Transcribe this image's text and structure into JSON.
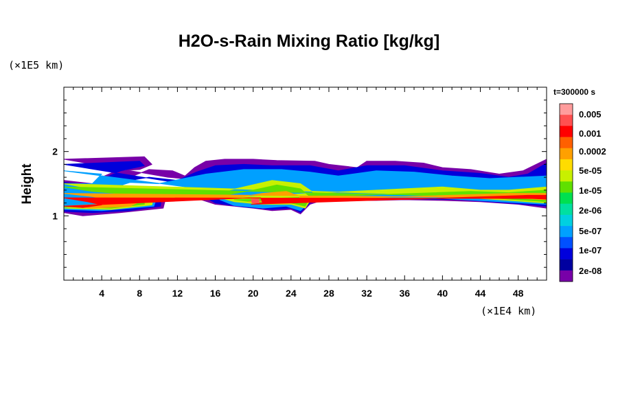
{
  "chart_data": {
    "type": "heatmap",
    "title": "H2O-s-Rain Mixing Ratio [kg/kg]",
    "xlabel": "",
    "ylabel": "Height",
    "x_unit": "(×1E4 km)",
    "y_unit": "(×1E5 km)",
    "xlim": [
      0,
      51
    ],
    "ylim": [
      0,
      3
    ],
    "x_ticks": [
      4,
      8,
      12,
      16,
      20,
      24,
      28,
      32,
      36,
      40,
      44,
      48
    ],
    "y_ticks": [
      1,
      2
    ],
    "timestamp": "t=300000 s",
    "colorbar": {
      "labels": [
        "0.005",
        "0.001",
        "0.0002",
        "5e-05",
        "1e-05",
        "2e-06",
        "5e-07",
        "1e-07",
        "2e-08"
      ],
      "colors": [
        "#ff9c9c",
        "#ff5050",
        "#ff0000",
        "#ff6000",
        "#ffa000",
        "#ffdc00",
        "#c8f000",
        "#60e000",
        "#00e050",
        "#00e0a0",
        "#00d0e0",
        "#00a0ff",
        "#0050ff",
        "#0000dc",
        "#0000a0",
        "#7800a8"
      ]
    },
    "contours": [
      {
        "level": "2e-08",
        "color": "#7800a8",
        "points": [
          [
            0,
            1.88
          ],
          [
            8.5,
            1.92
          ],
          [
            9.3,
            1.8
          ],
          [
            8,
            1.72
          ],
          [
            5.5,
            1.7
          ],
          [
            4,
            1.6
          ],
          [
            3,
            1.5
          ],
          [
            0,
            1.55
          ],
          [
            0,
            1.05
          ],
          [
            2,
            1.0
          ],
          [
            6,
            1.05
          ],
          [
            10.5,
            1.12
          ],
          [
            10.8,
            1.3
          ],
          [
            8.5,
            1.38
          ],
          [
            6,
            1.45
          ],
          [
            7,
            1.6
          ],
          [
            9,
            1.72
          ],
          [
            11.5,
            1.7
          ],
          [
            12.8,
            1.62
          ],
          [
            13.8,
            1.75
          ],
          [
            15,
            1.85
          ],
          [
            17,
            1.88
          ],
          [
            20,
            1.88
          ],
          [
            22.5,
            1.86
          ],
          [
            26.5,
            1.85
          ],
          [
            28,
            1.8
          ],
          [
            31,
            1.75
          ],
          [
            32,
            1.85
          ],
          [
            35,
            1.85
          ],
          [
            38,
            1.82
          ],
          [
            40,
            1.75
          ],
          [
            43,
            1.72
          ],
          [
            46,
            1.65
          ],
          [
            48.5,
            1.7
          ],
          [
            51,
            1.88
          ],
          [
            51,
            1.12
          ],
          [
            48,
            1.18
          ],
          [
            44,
            1.22
          ],
          [
            40,
            1.24
          ],
          [
            36,
            1.25
          ],
          [
            33,
            1.24
          ],
          [
            30,
            1.24
          ],
          [
            27.5,
            1.25
          ],
          [
            26,
            1.18
          ],
          [
            25,
            1.03
          ],
          [
            24,
            1.1
          ],
          [
            22,
            1.08
          ],
          [
            20,
            1.12
          ],
          [
            18,
            1.15
          ],
          [
            16,
            1.18
          ],
          [
            14.5,
            1.25
          ],
          [
            14,
            1.5
          ],
          [
            12.5,
            1.58
          ],
          [
            11,
            1.6
          ]
        ]
      },
      {
        "level": "1e-07",
        "color": "#0000dc",
        "points": [
          [
            0,
            1.8
          ],
          [
            8,
            1.85
          ],
          [
            8.5,
            1.78
          ],
          [
            6,
            1.7
          ],
          [
            4.5,
            1.6
          ],
          [
            3,
            1.48
          ],
          [
            0,
            1.52
          ],
          [
            0,
            1.07
          ],
          [
            3,
            1.05
          ],
          [
            7,
            1.08
          ],
          [
            10.2,
            1.15
          ],
          [
            10.3,
            1.28
          ],
          [
            8,
            1.35
          ],
          [
            5.8,
            1.45
          ],
          [
            7,
            1.55
          ],
          [
            9,
            1.6
          ],
          [
            12,
            1.55
          ],
          [
            14,
            1.68
          ],
          [
            16,
            1.78
          ],
          [
            19,
            1.8
          ],
          [
            22,
            1.78
          ],
          [
            26,
            1.78
          ],
          [
            29,
            1.7
          ],
          [
            32,
            1.78
          ],
          [
            36,
            1.78
          ],
          [
            40,
            1.7
          ],
          [
            44,
            1.66
          ],
          [
            47,
            1.6
          ],
          [
            49,
            1.65
          ],
          [
            51,
            1.82
          ],
          [
            51,
            1.15
          ],
          [
            47,
            1.2
          ],
          [
            42,
            1.25
          ],
          [
            36,
            1.27
          ],
          [
            32,
            1.26
          ],
          [
            28,
            1.27
          ],
          [
            26,
            1.2
          ],
          [
            25,
            1.05
          ],
          [
            24,
            1.12
          ],
          [
            22,
            1.1
          ],
          [
            19,
            1.14
          ],
          [
            16,
            1.2
          ],
          [
            15,
            1.28
          ],
          [
            14.6,
            1.45
          ]
        ]
      },
      {
        "level": "5e-07",
        "color": "#00a0ff",
        "points": [
          [
            0,
            1.7
          ],
          [
            4,
            1.65
          ],
          [
            3,
            1.5
          ],
          [
            0,
            1.5
          ],
          [
            0,
            1.1
          ],
          [
            4,
            1.08
          ],
          [
            9.5,
            1.15
          ],
          [
            9.8,
            1.28
          ],
          [
            7.5,
            1.33
          ],
          [
            5.5,
            1.45
          ],
          [
            7,
            1.52
          ],
          [
            10,
            1.5
          ],
          [
            15,
            1.65
          ],
          [
            19,
            1.72
          ],
          [
            23,
            1.72
          ],
          [
            26,
            1.68
          ],
          [
            29,
            1.62
          ],
          [
            33,
            1.7
          ],
          [
            37,
            1.68
          ],
          [
            41,
            1.62
          ],
          [
            45,
            1.58
          ],
          [
            51,
            1.62
          ],
          [
            51,
            1.18
          ],
          [
            46,
            1.22
          ],
          [
            40,
            1.27
          ],
          [
            33,
            1.28
          ],
          [
            28,
            1.3
          ],
          [
            26,
            1.22
          ],
          [
            25,
            1.08
          ],
          [
            23.5,
            1.15
          ],
          [
            21,
            1.12
          ],
          [
            18,
            1.16
          ],
          [
            16.5,
            1.25
          ],
          [
            15.5,
            1.4
          ]
        ]
      },
      {
        "level": "5e-05",
        "color": "#c8f000",
        "points": [
          [
            0,
            1.5
          ],
          [
            3,
            1.42
          ],
          [
            5.5,
            1.42
          ],
          [
            7,
            1.35
          ],
          [
            9.5,
            1.3
          ],
          [
            9.3,
            1.17
          ],
          [
            5,
            1.1
          ],
          [
            0,
            1.12
          ],
          [
            16,
            1.35
          ],
          [
            19,
            1.45
          ],
          [
            22,
            1.55
          ],
          [
            25,
            1.5
          ],
          [
            26.5,
            1.35
          ],
          [
            25.5,
            1.12
          ],
          [
            24,
            1.18
          ],
          [
            21,
            1.18
          ],
          [
            18,
            1.22
          ],
          [
            16.5,
            1.28
          ],
          [
            40,
            1.45
          ],
          [
            44,
            1.4
          ],
          [
            47,
            1.4
          ],
          [
            51,
            1.45
          ],
          [
            51,
            1.2
          ],
          [
            47,
            1.24
          ],
          [
            43,
            1.28
          ],
          [
            40,
            1.32
          ]
        ]
      },
      {
        "level": "1e-05",
        "color": "#60e000",
        "points": [
          [
            0,
            1.45
          ],
          [
            3,
            1.38
          ],
          [
            5.5,
            1.35
          ],
          [
            8.5,
            1.28
          ],
          [
            8.5,
            1.18
          ],
          [
            5,
            1.12
          ],
          [
            0,
            1.14
          ],
          [
            17,
            1.32
          ],
          [
            20,
            1.4
          ],
          [
            22.5,
            1.48
          ],
          [
            25,
            1.42
          ],
          [
            26,
            1.3
          ],
          [
            25.5,
            1.15
          ],
          [
            24,
            1.2
          ],
          [
            21,
            1.2
          ],
          [
            18,
            1.25
          ],
          [
            43,
            1.38
          ],
          [
            47,
            1.36
          ],
          [
            51,
            1.4
          ],
          [
            51,
            1.22
          ],
          [
            47,
            1.26
          ],
          [
            43,
            1.3
          ]
        ]
      },
      {
        "level": "0.0002",
        "color": "#ffa000",
        "points": [
          [
            0,
            1.35
          ],
          [
            3,
            1.3
          ],
          [
            6,
            1.22
          ],
          [
            8,
            1.22
          ],
          [
            7,
            1.15
          ],
          [
            3,
            1.12
          ],
          [
            0,
            1.15
          ],
          [
            19,
            1.3
          ],
          [
            21,
            1.35
          ],
          [
            23.5,
            1.38
          ],
          [
            25,
            1.3
          ],
          [
            24.5,
            1.2
          ],
          [
            22,
            1.22
          ],
          [
            19.5,
            1.22
          ],
          [
            47,
            1.35
          ],
          [
            51,
            1.35
          ],
          [
            51,
            1.25
          ],
          [
            47,
            1.28
          ]
        ]
      },
      {
        "level": "0.001",
        "color": "#ff0000",
        "points": [
          [
            0,
            1.28
          ],
          [
            2.5,
            1.22
          ],
          [
            4,
            1.17
          ],
          [
            2,
            1.13
          ],
          [
            0,
            1.15
          ],
          [
            19.5,
            1.28
          ],
          [
            20.8,
            1.28
          ],
          [
            21,
            1.2
          ],
          [
            19.8,
            1.18
          ],
          [
            49,
            1.32
          ],
          [
            51,
            1.32
          ],
          [
            51,
            1.26
          ],
          [
            49.5,
            1.27
          ]
        ]
      },
      {
        "level": "0.005",
        "color": "#ff5050",
        "points": [
          [
            19.8,
            1.26
          ],
          [
            20.6,
            1.26
          ],
          [
            20.6,
            1.2
          ],
          [
            19.9,
            1.2
          ]
        ]
      }
    ]
  }
}
